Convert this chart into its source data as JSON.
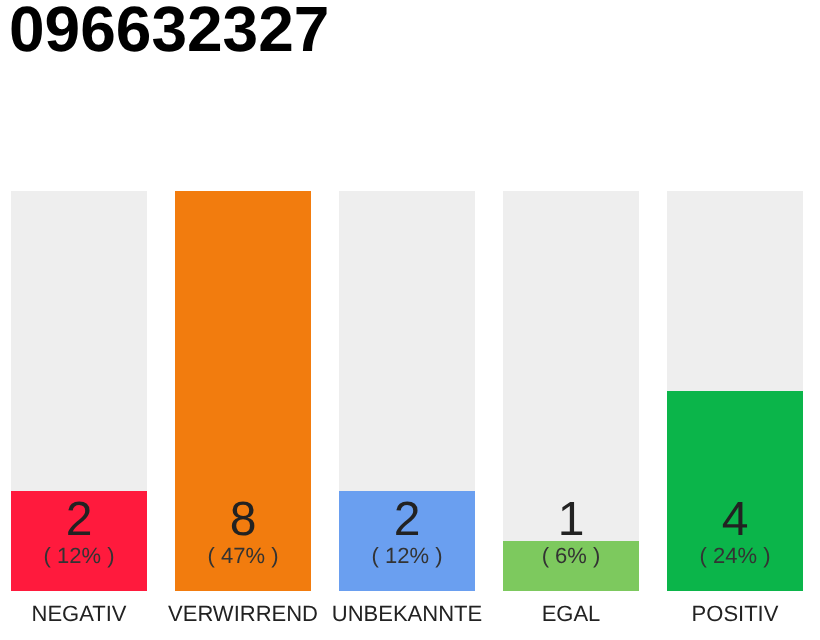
{
  "chart_data": {
    "type": "bar",
    "title": "096632327",
    "categories": [
      "NEGATIV",
      "VERWIRREND",
      "UNBEKANNTE",
      "EGAL",
      "POSITIV"
    ],
    "values": [
      2,
      8,
      2,
      1,
      4
    ],
    "colors": [
      "#ff1a3d",
      "#f27c0e",
      "#6a9ff0",
      "#7dc95e",
      "#0bb54a"
    ],
    "data_labels": true,
    "annotations": [
      "( 12% )",
      "( 47% )",
      "( 12% )",
      "( 6% )",
      "( 24% )"
    ]
  }
}
